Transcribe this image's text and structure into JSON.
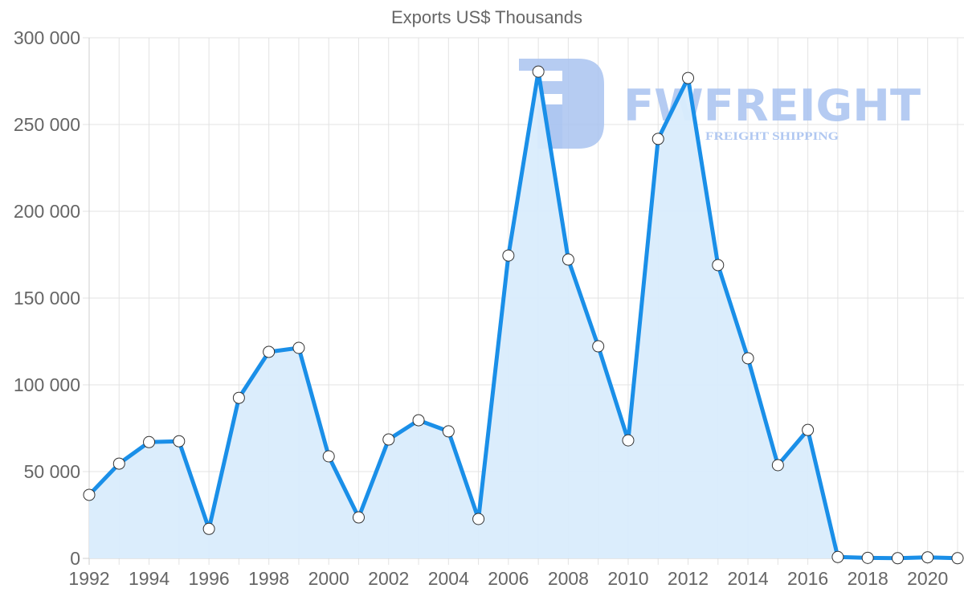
{
  "chart_data": {
    "type": "line",
    "title": "Exports US$ Thousands",
    "xlabel": "",
    "ylabel": "",
    "ylim": [
      0,
      300000
    ],
    "xlim": [
      1992,
      2021
    ],
    "y_ticks": [
      "0",
      "50 000",
      "100 000",
      "150 000",
      "200 000",
      "250 000",
      "300 000"
    ],
    "y_tick_values": [
      0,
      50000,
      100000,
      150000,
      200000,
      250000,
      300000
    ],
    "x_tick_labels": [
      "1992",
      "1994",
      "1996",
      "1998",
      "2000",
      "2002",
      "2004",
      "2006",
      "2008",
      "2010",
      "2012",
      "2014",
      "2016",
      "2018",
      "2020"
    ],
    "grid": true,
    "legend": "none",
    "area_fill": true,
    "categories": [
      1992,
      1993,
      1994,
      1995,
      1996,
      1997,
      1998,
      1999,
      2000,
      2001,
      2002,
      2003,
      2004,
      2005,
      2006,
      2007,
      2008,
      2009,
      2010,
      2011,
      2012,
      2013,
      2014,
      2015,
      2016,
      2017,
      2018,
      2019,
      2020,
      2021
    ],
    "series": [
      {
        "name": "Exports US$ Thousands",
        "values": [
          36600,
          54600,
          67000,
          67500,
          17000,
          92500,
          119000,
          121300,
          58800,
          23600,
          68500,
          79600,
          73200,
          22700,
          174500,
          280500,
          172200,
          122200,
          68000,
          241700,
          276800,
          169000,
          115300,
          53700,
          74000,
          800,
          300,
          100,
          600,
          100
        ]
      }
    ]
  },
  "watermark": {
    "brand": "FWFREIGHT",
    "tagline": "FREIGHT SHIPPING"
  },
  "colors": {
    "line": "#1a8fe8",
    "fill": "#d9ecfc",
    "point_fill": "#ffffff",
    "point_stroke": "#333333",
    "watermark": "#a9c3f0"
  }
}
